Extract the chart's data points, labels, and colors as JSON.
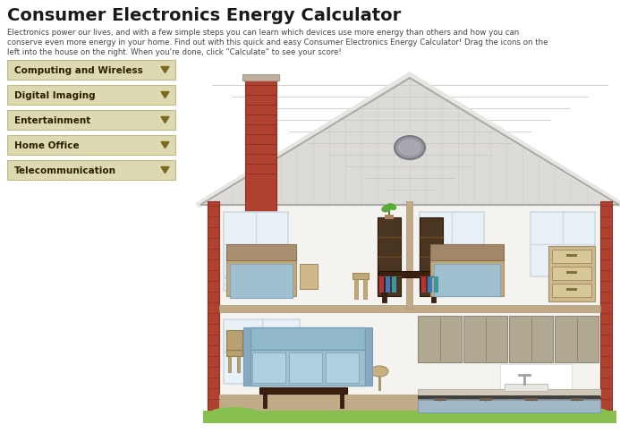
{
  "title": "Consumer Electronics Energy Calculator",
  "subtitle_line1": "Electronics power our lives, and with a few simple steps you can learn which devices use more energy than others and how you can",
  "subtitle_line2": "conserve even more energy in your home. Find out with this quick and easy Consumer Electronics Energy Calculator! Drag the icons on the",
  "subtitle_line3": "left into the house on the right. When you're done, click \"Calculate\" to see your score!",
  "bg_color": "#ffffff",
  "menu_items": [
    "Computing and Wireless",
    "Digital Imaging",
    "Entertainment",
    "Home Office",
    "Telecommunication"
  ],
  "menu_bg": "#ddd9b0",
  "menu_text_color": "#2a2000",
  "menu_border_color": "#c0bc88",
  "menu_arrow_color": "#7a6a20",
  "title_color": "#1a1a1a",
  "subtitle_color": "#444444",
  "wall_color": "#f5f3ef",
  "roof_color": "#dddbd7",
  "roof_shingle_color": "#ccc9c4",
  "brick_color": "#b04030",
  "brick_mortar": "#8a3020",
  "floor_color": "#c0aa88",
  "window_color": "#e8f0f8",
  "window_border": "#d0d8e0",
  "dark_wood": "#4a3520",
  "medium_wood": "#c0a878",
  "light_wood": "#d0b888",
  "blue_fabric": "#a0c0d0",
  "cabinet_color": "#b0a890",
  "cabinet_border": "#908878",
  "grass_color": "#88c050"
}
